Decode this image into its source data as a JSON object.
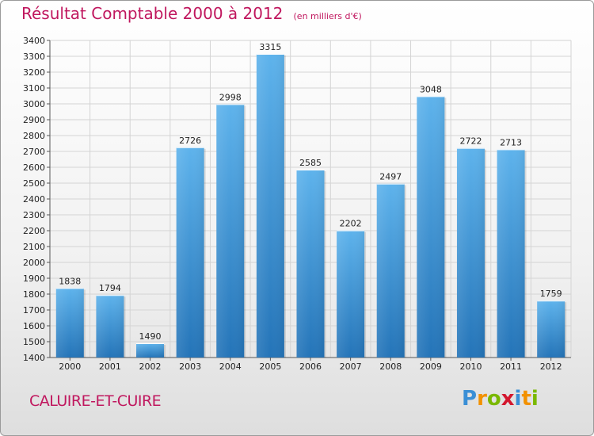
{
  "chart_data": {
    "type": "bar",
    "title": "Résultat Comptable 2000 à 2012",
    "unit_label": "(en milliers d'€)",
    "categories": [
      "2000",
      "2001",
      "2002",
      "2003",
      "2004",
      "2005",
      "2006",
      "2007",
      "2008",
      "2009",
      "2010",
      "2011",
      "2012"
    ],
    "values": [
      1838,
      1794,
      1490,
      2726,
      2998,
      3315,
      2585,
      2202,
      2497,
      3048,
      2722,
      2713,
      1759
    ],
    "ylim": [
      1400,
      3400
    ],
    "ytick_step": 100,
    "grid": true,
    "xlabel": "",
    "ylabel": ""
  },
  "commune": "CALUIRE-ET-CUIRE",
  "logo": {
    "letters": [
      "P",
      "r",
      "o",
      "x",
      "i",
      "t",
      "i"
    ],
    "colors": [
      "#3a8fd6",
      "#f29100",
      "#7ab800",
      "#d3172e",
      "#3a8fd6",
      "#f29100",
      "#7ab800"
    ]
  },
  "colors": {
    "title": "#c0175e",
    "bar_light": "#5eb3ec",
    "bar_dark": "#2474b8"
  }
}
